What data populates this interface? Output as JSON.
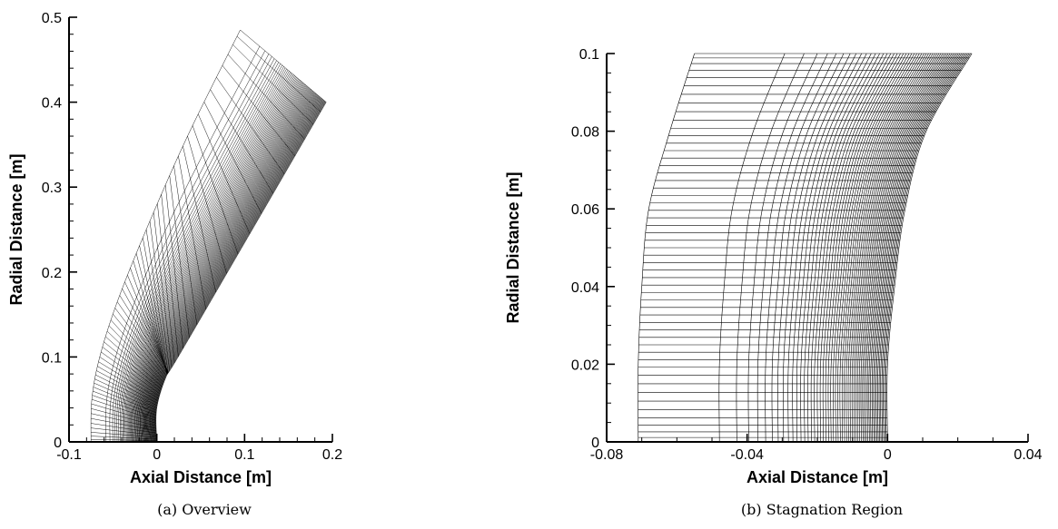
{
  "chart_data": [
    {
      "type": "mesh",
      "caption": "(a) Overview",
      "xlabel": "Axial Distance [m]",
      "ylabel": "Radial Distance [m]",
      "xlim": [
        -0.1,
        0.2
      ],
      "ylim": [
        0,
        0.5
      ],
      "xticks": [
        "-0.1",
        "0",
        "0.1",
        "0.2"
      ],
      "yticks": [
        "0",
        "0.1",
        "0.2",
        "0.3",
        "0.4",
        "0.5"
      ],
      "body_surface": [
        [
          0.0,
          0.0
        ],
        [
          0.0,
          0.04
        ],
        [
          0.012,
          0.08
        ],
        [
          0.03,
          0.11
        ],
        [
          0.193,
          0.4
        ]
      ],
      "outer_boundary": [
        [
          -0.075,
          0.0
        ],
        [
          -0.074,
          0.05
        ],
        [
          -0.065,
          0.1
        ],
        [
          -0.045,
          0.165
        ],
        [
          -0.012,
          0.25
        ],
        [
          0.035,
          0.36
        ],
        [
          0.095,
          0.485
        ]
      ]
    },
    {
      "type": "mesh",
      "caption": "(b) Stagnation Region",
      "xlabel": "Axial Distance [m]",
      "ylabel": "Radial Distance [m]",
      "xlim": [
        -0.08,
        0.04
      ],
      "ylim": [
        0,
        0.1
      ],
      "xticks": [
        "-0.08",
        "-0.04",
        "0",
        "0.04"
      ],
      "yticks": [
        "0",
        "0.02",
        "0.04",
        "0.06",
        "0.08",
        "0.1"
      ],
      "body_surface": [
        [
          0.0,
          0.0
        ],
        [
          0.0,
          0.02
        ],
        [
          0.002,
          0.04
        ],
        [
          0.005,
          0.06
        ],
        [
          0.011,
          0.08
        ],
        [
          0.024,
          0.1
        ]
      ],
      "outer_boundary": [
        [
          -0.071,
          0.0
        ],
        [
          -0.071,
          0.02
        ],
        [
          -0.07,
          0.04
        ],
        [
          -0.068,
          0.06
        ],
        [
          -0.062,
          0.08
        ],
        [
          -0.055,
          0.1
        ]
      ]
    }
  ]
}
